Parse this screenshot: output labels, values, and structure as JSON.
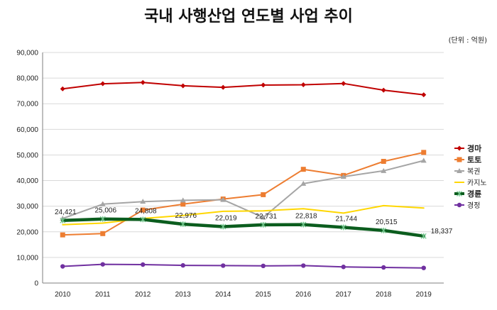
{
  "chart_data": {
    "type": "line",
    "title": "국내 사행산업 연도별 사업 추이",
    "unit_note": "(단위 : 억원)",
    "x": [
      "2010",
      "2011",
      "2012",
      "2013",
      "2014",
      "2015",
      "2016",
      "2017",
      "2018",
      "2019"
    ],
    "ylim": [
      0,
      90000
    ],
    "yticks": [
      0,
      10000,
      20000,
      30000,
      40000,
      50000,
      60000,
      70000,
      80000,
      90000
    ],
    "ytick_labels": [
      "0",
      "10,000",
      "20,000",
      "30,000",
      "40,000",
      "50,000",
      "60,000",
      "70,000",
      "80,000",
      "90,000"
    ],
    "grid": true,
    "legend_position": "right",
    "series": [
      {
        "name": "경마",
        "color": "#c00000",
        "marker": "diamond",
        "width": 2,
        "bold": true,
        "values": [
          75800,
          77800,
          78300,
          77000,
          76400,
          77300,
          77400,
          77900,
          75300,
          73500
        ]
      },
      {
        "name": "토토",
        "color": "#ed7d31",
        "marker": "square",
        "width": 2,
        "bold": true,
        "values": [
          18800,
          19300,
          28500,
          30800,
          32800,
          34500,
          44400,
          42000,
          47500,
          51000
        ]
      },
      {
        "name": "복권",
        "color": "#a5a5a5",
        "marker": "triangle",
        "width": 2,
        "bold": false,
        "values": [
          25200,
          30800,
          31800,
          32300,
          32500,
          25600,
          38800,
          41500,
          43800,
          47800
        ]
      },
      {
        "name": "카지노",
        "color": "#ffd700",
        "marker": "none",
        "width": 2,
        "bold": false,
        "values": [
          22800,
          23400,
          25200,
          26400,
          28000,
          28200,
          29000,
          27300,
          30200,
          29300
        ]
      },
      {
        "name": "경륜",
        "color": "#0b5d1e",
        "marker": "star",
        "width": 4.5,
        "bold": true,
        "values": [
          24421,
          25006,
          24808,
          22976,
          22019,
          22731,
          22818,
          21744,
          20515,
          18337
        ],
        "data_labels": [
          "24,421",
          "25,006",
          "24,808",
          "22,976",
          "22,019",
          "22,731",
          "22,818",
          "21,744",
          "20,515",
          "18,337"
        ]
      },
      {
        "name": "경정",
        "color": "#7030a0",
        "marker": "circle",
        "width": 2,
        "bold": false,
        "values": [
          6500,
          7300,
          7200,
          6900,
          6800,
          6700,
          6800,
          6300,
          6100,
          5900
        ]
      }
    ]
  }
}
